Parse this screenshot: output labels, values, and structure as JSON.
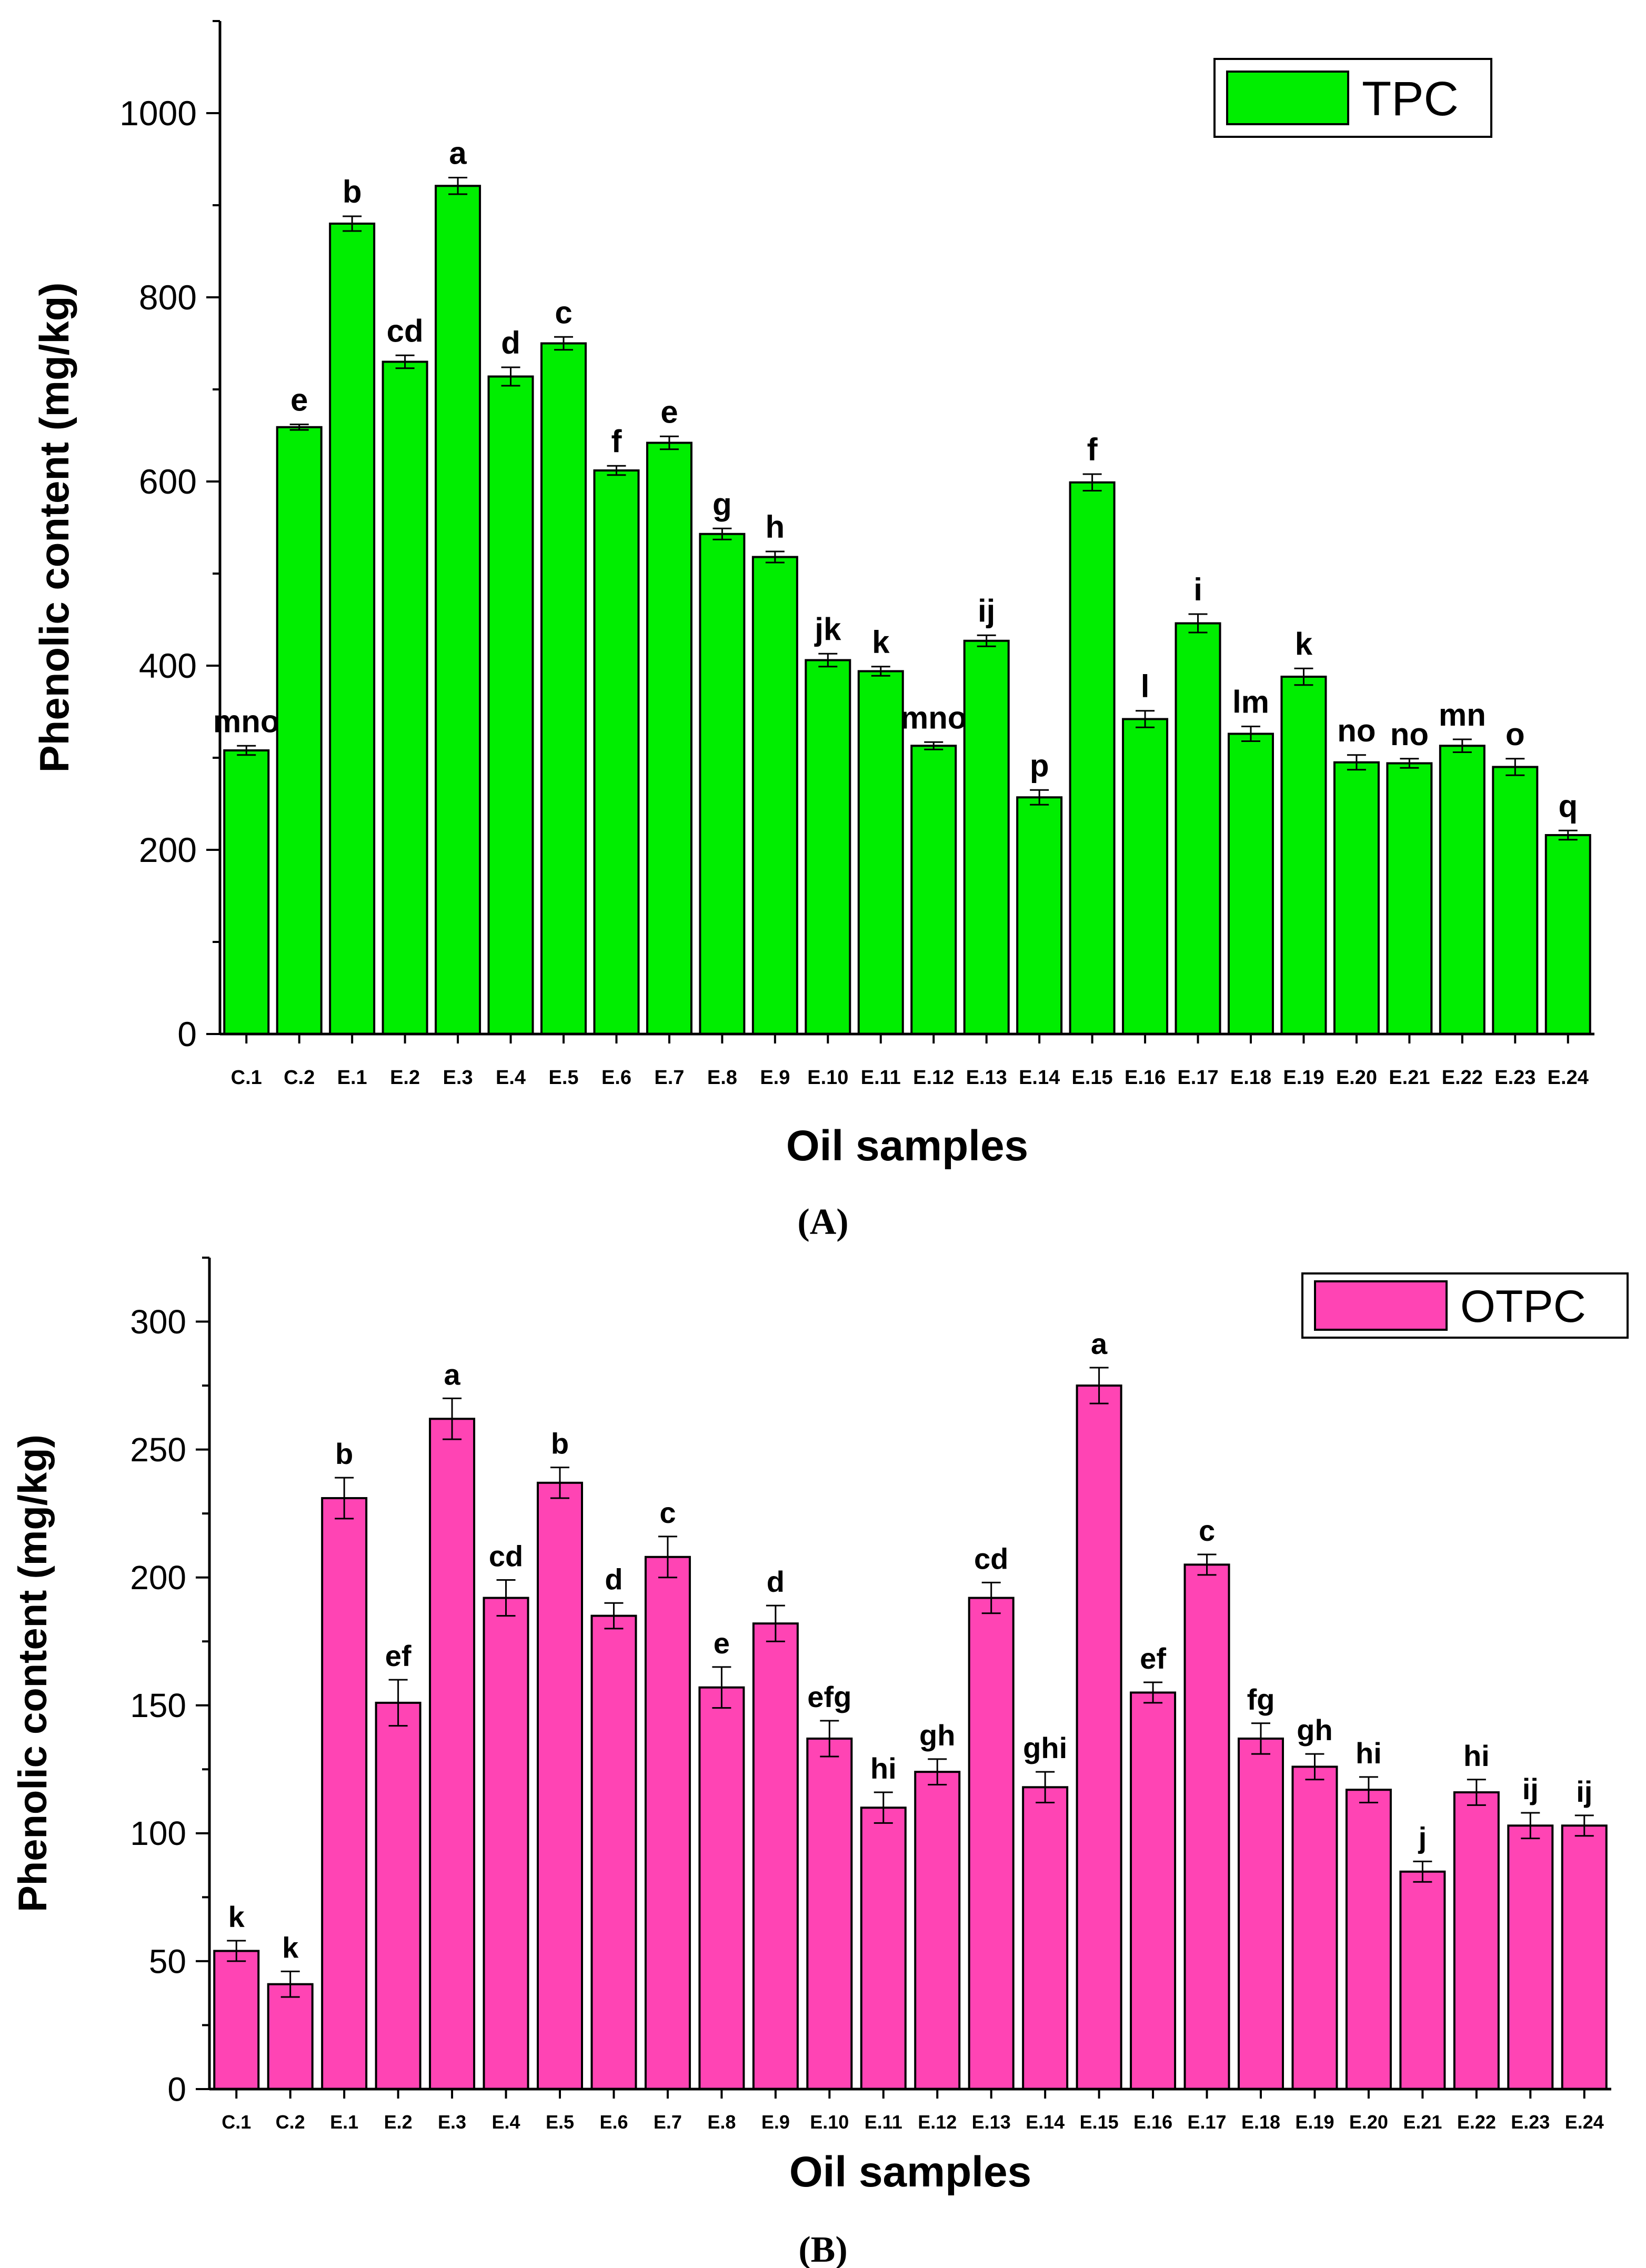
{
  "chart_data": [
    {
      "type": "bar",
      "panel_label": "(A)",
      "title": "",
      "xlabel": "Oil samples",
      "ylabel": "Phenolic content (mg/kg)",
      "ylim": [
        0,
        1100
      ],
      "yticks": [
        0,
        200,
        400,
        600,
        800,
        1000
      ],
      "grid": false,
      "legend": {
        "position": "top-right",
        "entries": [
          "TPC"
        ]
      },
      "categories": [
        "C.1",
        "C.2",
        "E.1",
        "E.2",
        "E.3",
        "E.4",
        "E.5",
        "E.6",
        "E.7",
        "E.8",
        "E.9",
        "E.10",
        "E.11",
        "E.12",
        "E.13",
        "E.14",
        "E.15",
        "E.16",
        "E.17",
        "E.18",
        "E.19",
        "E.20",
        "E.21",
        "E.22",
        "E.23",
        "E.24"
      ],
      "series": [
        {
          "name": "TPC",
          "color": "#00ee00",
          "values": [
            308,
            659,
            880,
            730,
            921,
            714,
            750,
            612,
            642,
            543,
            518,
            406,
            394,
            313,
            427,
            257,
            599,
            342,
            446,
            326,
            388,
            295,
            294,
            313,
            290,
            216
          ],
          "errors": [
            5,
            3,
            8,
            7,
            9,
            10,
            7,
            5,
            7,
            6,
            6,
            7,
            5,
            4,
            6,
            8,
            9,
            9,
            10,
            8,
            9,
            8,
            5,
            7,
            9,
            5
          ],
          "significance": [
            "mno",
            "e",
            "b",
            "cd",
            "a",
            "d",
            "c",
            "f",
            "e",
            "g",
            "h",
            "jk",
            "k",
            "mno",
            "ij",
            "p",
            "f",
            "l",
            "i",
            "lm",
            "k",
            "no",
            "no",
            "mn",
            "o",
            "q"
          ]
        }
      ]
    },
    {
      "type": "bar",
      "panel_label": "(B)",
      "title": "",
      "xlabel": "Oil samples",
      "ylabel": "Phenolic content (mg/kg)",
      "ylim": [
        0,
        325
      ],
      "yticks": [
        0,
        50,
        100,
        150,
        200,
        250,
        300
      ],
      "grid": false,
      "legend": {
        "position": "top-right",
        "entries": [
          "OTPC"
        ]
      },
      "categories": [
        "C.1",
        "C.2",
        "E.1",
        "E.2",
        "E.3",
        "E.4",
        "E.5",
        "E.6",
        "E.7",
        "E.8",
        "E.9",
        "E.10",
        "E.11",
        "E.12",
        "E.13",
        "E.14",
        "E.15",
        "E.16",
        "E.17",
        "E.18",
        "E.19",
        "E.20",
        "E.21",
        "E.22",
        "E.23",
        "E.24"
      ],
      "series": [
        {
          "name": "OTPC",
          "color": "#ff44b4",
          "values": [
            54,
            41,
            231,
            151,
            262,
            192,
            237,
            185,
            208,
            157,
            182,
            137,
            110,
            124,
            192,
            118,
            275,
            155,
            205,
            137,
            126,
            117,
            85,
            116,
            103,
            103
          ],
          "errors": [
            4,
            5,
            8,
            9,
            8,
            7,
            6,
            5,
            8,
            8,
            7,
            7,
            6,
            5,
            6,
            6,
            7,
            4,
            4,
            6,
            5,
            5,
            4,
            5,
            5,
            4
          ],
          "significance": [
            "k",
            "k",
            "b",
            "ef",
            "a",
            "cd",
            "b",
            "d",
            "c",
            "e",
            "d",
            "efg",
            "hi",
            "gh",
            "cd",
            "ghi",
            "a",
            "ef",
            "c",
            "fg",
            "gh",
            "hi",
            "j",
            "hi",
            "ij",
            "ij"
          ]
        }
      ]
    }
  ]
}
